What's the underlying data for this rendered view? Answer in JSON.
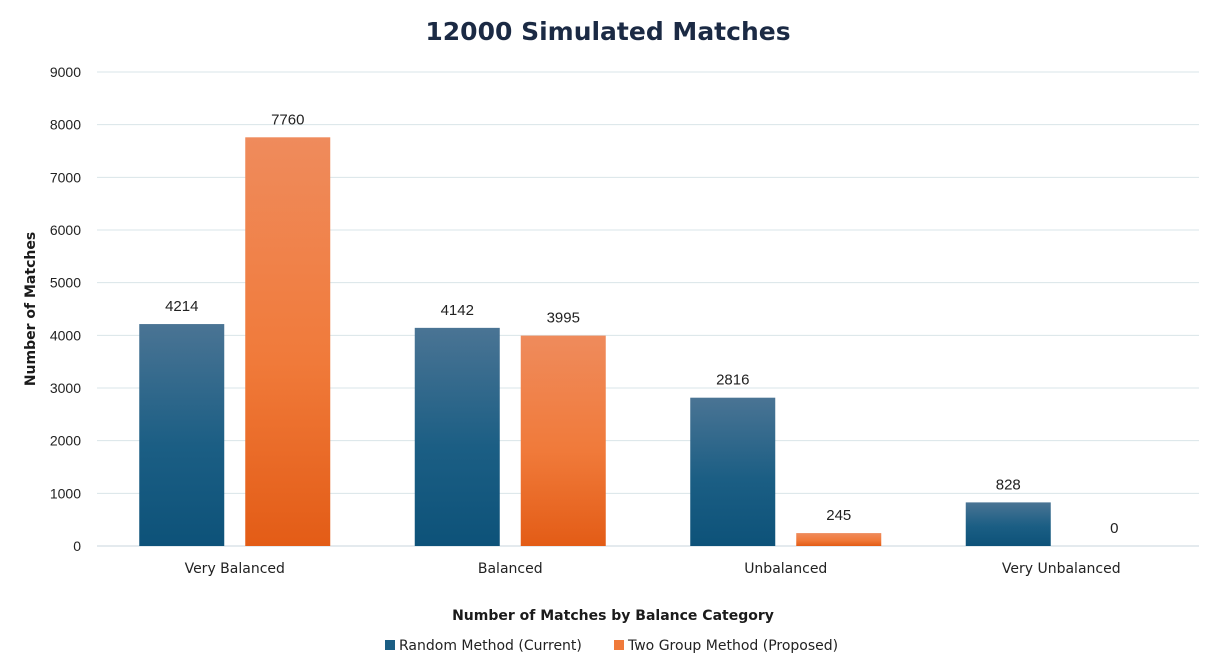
{
  "chart_data": {
    "type": "bar",
    "title": "12000 Simulated Matches",
    "xlabel": "Number of Matches by Balance Category",
    "ylabel": "Number of Matches",
    "categories": [
      "Very Balanced",
      "Balanced",
      "Unbalanced",
      "Very Unbalanced"
    ],
    "series": [
      {
        "name": "Random Method (Current)",
        "values": [
          4214,
          4142,
          2816,
          828
        ],
        "color": "#1b5e84",
        "gradient": [
          "#4a7494",
          "#0d5279"
        ]
      },
      {
        "name": "Two Group Method (Proposed)",
        "values": [
          7760,
          3995,
          245,
          0
        ],
        "color": "#f07a3a",
        "gradient": [
          "#ef8b5c",
          "#e35c16"
        ]
      }
    ],
    "ylim": [
      0,
      9000
    ],
    "yticks": [
      0,
      1000,
      2000,
      3000,
      4000,
      5000,
      6000,
      7000,
      8000,
      9000
    ],
    "grid": true,
    "legend_position": "bottom"
  }
}
